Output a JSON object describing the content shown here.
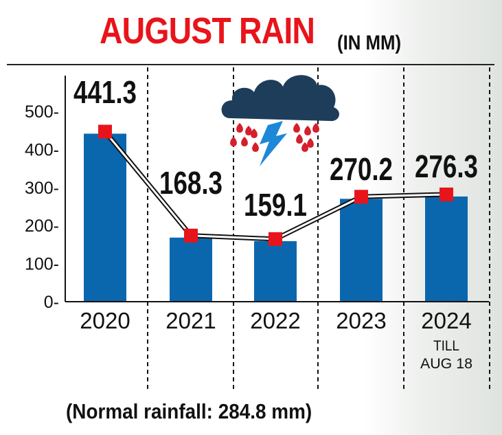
{
  "header": {
    "title": "AUGUST RAIN",
    "subtitle": "(IN MM)"
  },
  "footer": {
    "note": "(Normal rainfall: 284.8 mm)"
  },
  "chart_data": {
    "type": "bar",
    "categories": [
      "2020",
      "2021",
      "2022",
      "2023",
      "2024"
    ],
    "category_notes": [
      "",
      "",
      "",
      "",
      "TILL AUG 18"
    ],
    "values": [
      441.3,
      168.3,
      159.1,
      270.2,
      276.3
    ],
    "data_labels": [
      "441.3",
      "168.3",
      "159.1",
      "270.2",
      "276.3"
    ],
    "yticks": [
      "500-",
      "400-",
      "300-",
      "200-",
      "100-",
      "0-"
    ],
    "ytick_values": [
      500,
      400,
      300,
      200,
      100,
      0
    ],
    "ylim": [
      0,
      500
    ],
    "line_overlay": true,
    "grid": false,
    "colors": {
      "bar": "#0b67ad",
      "marker": "#e8141b",
      "title": "#e8141b",
      "text": "#111111"
    }
  }
}
